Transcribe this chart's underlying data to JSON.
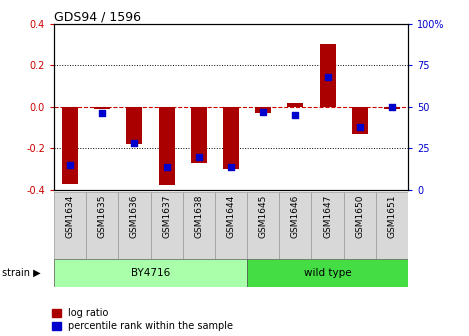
{
  "title": "GDS94 / 1596",
  "samples": [
    "GSM1634",
    "GSM1635",
    "GSM1636",
    "GSM1637",
    "GSM1638",
    "GSM1644",
    "GSM1645",
    "GSM1646",
    "GSM1647",
    "GSM1650",
    "GSM1651"
  ],
  "log_ratio": [
    -0.37,
    -0.01,
    -0.18,
    -0.375,
    -0.27,
    -0.3,
    -0.03,
    0.02,
    0.3,
    -0.13,
    -0.01
  ],
  "percentile_rank": [
    15,
    46,
    28,
    14,
    20,
    14,
    47,
    45,
    68,
    38,
    50
  ],
  "groups": [
    {
      "label": "BY4716",
      "start": 0,
      "end": 5,
      "color": "#AAFFAA"
    },
    {
      "label": "wild type",
      "start": 6,
      "end": 10,
      "color": "#44DD44"
    }
  ],
  "bar_color": "#AA0000",
  "dot_color": "#0000CC",
  "ylim": [
    -0.4,
    0.4
  ],
  "yticks_left": [
    -0.4,
    -0.2,
    0.0,
    0.2,
    0.4
  ],
  "yticks_right": [
    0,
    25,
    50,
    75,
    100
  ],
  "hline_color": "#CC0000",
  "grid_color": "#000000",
  "bg_color": "#FFFFFF",
  "plot_bg": "#FFFFFF",
  "title_color": "#000000",
  "left_tick_color": "#CC0000",
  "right_tick_color": "#0000CC",
  "legend_red_label": "log ratio",
  "legend_blue_label": "percentile rank within the sample",
  "xtick_bg": "#D8D8D8"
}
